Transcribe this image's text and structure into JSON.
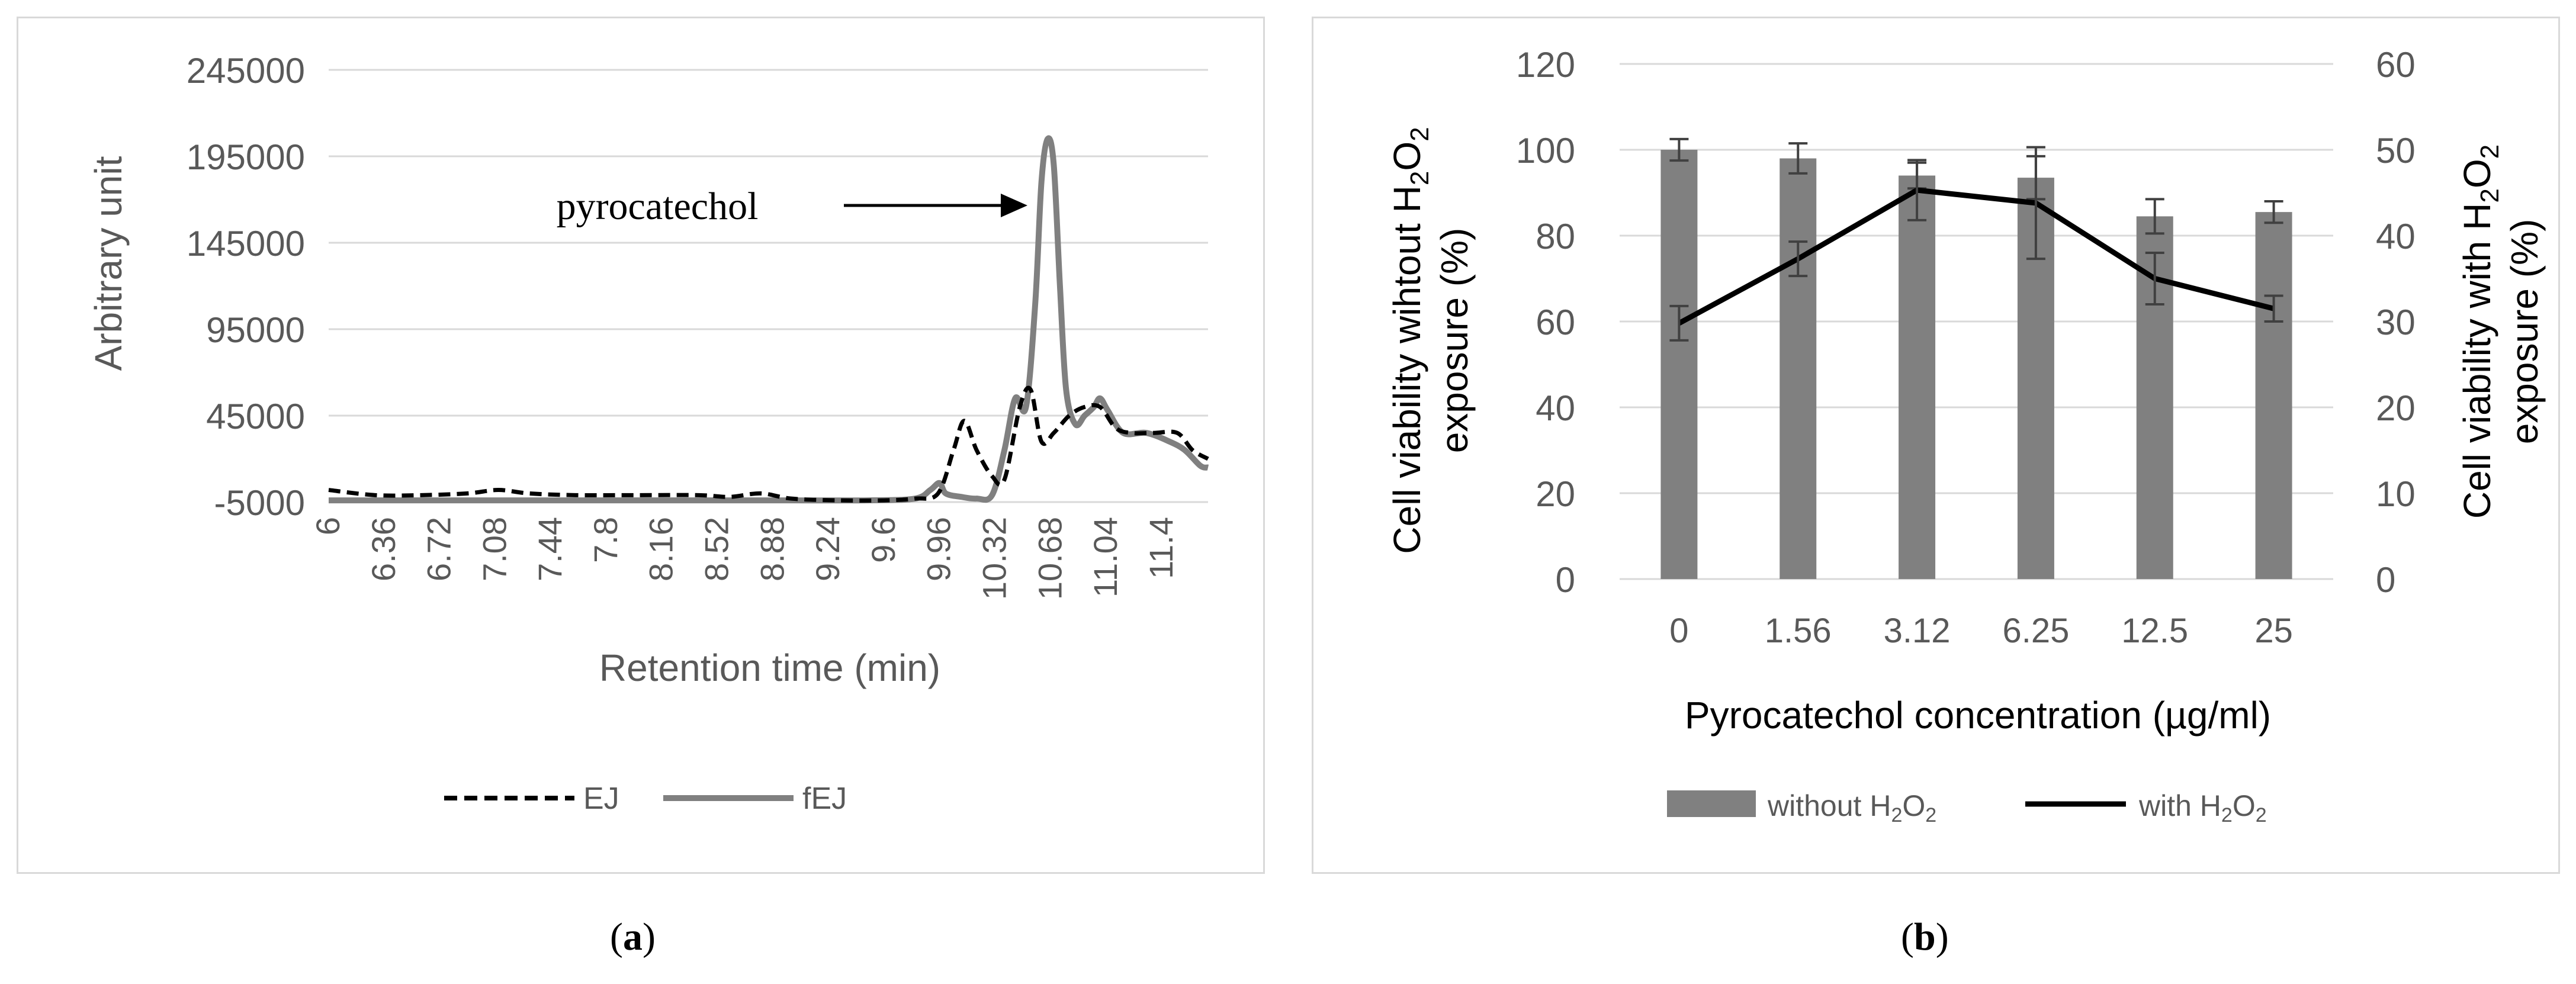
{
  "figure": {
    "caption_a": {
      "open": "(",
      "letter": "a",
      "close": ")"
    },
    "caption_b": {
      "open": "(",
      "letter": "b",
      "close": ")"
    }
  },
  "colors": {
    "bar": "#808080",
    "ej_line": "#000000",
    "fej_line": "#808080",
    "with_line": "#000000",
    "grid": "#d9d9d9",
    "axis_text": "#595959"
  },
  "chart_data": [
    {
      "id": "a",
      "type": "line",
      "title": "",
      "xlabel": "Retention time (min)",
      "ylabel": "Arbitrary unit",
      "ylim": [
        -5000,
        245000
      ],
      "y_ticks": [
        245000,
        195000,
        145000,
        95000,
        45000,
        -5000
      ],
      "y_tick_labels": [
        "245000",
        "195000",
        "145000",
        "95000",
        "45000",
        "-5000"
      ],
      "xlim": [
        6.0,
        11.7
      ],
      "x_ticks": [
        6,
        6.36,
        6.72,
        7.08,
        7.44,
        7.8,
        8.16,
        8.52,
        8.88,
        9.24,
        9.6,
        9.96,
        10.32,
        10.68,
        11.04,
        11.4
      ],
      "x_tick_labels": [
        "6",
        "6.36",
        "6.72",
        "7.08",
        "7.44",
        "7.8",
        "8.16",
        "8.52",
        "8.88",
        "9.24",
        "9.6",
        "9.96",
        "10.32",
        "10.68",
        "11.04",
        "11.4"
      ],
      "annotation": {
        "text": "pyrocatechol",
        "x": 10.68,
        "y": 200000
      },
      "legend": "bottom",
      "series": [
        {
          "name": "EJ",
          "style": "dashed",
          "x": [
            6.0,
            6.3,
            6.6,
            6.9,
            7.1,
            7.3,
            7.6,
            8.0,
            8.4,
            8.6,
            8.8,
            9.0,
            9.3,
            9.6,
            9.8,
            9.95,
            10.05,
            10.12,
            10.2,
            10.3,
            10.38,
            10.48,
            10.55,
            10.62,
            10.7,
            10.8,
            10.9,
            11.0,
            11.1,
            11.2,
            11.35,
            11.5,
            11.6,
            11.7
          ],
          "y": [
            2000,
            -1000,
            -1000,
            0,
            2000,
            0,
            -1000,
            -1000,
            -1000,
            -2000,
            0,
            -3000,
            -4000,
            -4000,
            -3000,
            0,
            25000,
            42000,
            25000,
            10000,
            8000,
            50000,
            60000,
            30000,
            35000,
            45000,
            50000,
            50000,
            38000,
            35000,
            35000,
            35000,
            25000,
            20000
          ]
        },
        {
          "name": "fEJ",
          "style": "solid",
          "x": [
            6.0,
            6.5,
            7.0,
            7.5,
            8.0,
            8.5,
            9.0,
            9.5,
            9.8,
            9.9,
            9.96,
            10.0,
            10.1,
            10.2,
            10.3,
            10.38,
            10.45,
            10.52,
            10.58,
            10.62,
            10.66,
            10.7,
            10.74,
            10.78,
            10.84,
            10.9,
            10.96,
            11.0,
            11.05,
            11.15,
            11.3,
            11.45,
            11.55,
            11.65,
            11.7
          ],
          "y": [
            -4000,
            -4000,
            -4000,
            -4000,
            -4000,
            -4000,
            -4000,
            -4000,
            -3000,
            2000,
            6000,
            0,
            -2000,
            -3000,
            -1000,
            25000,
            55000,
            50000,
            110000,
            180000,
            205000,
            190000,
            120000,
            60000,
            40000,
            45000,
            50000,
            55000,
            48000,
            35000,
            35000,
            30000,
            25000,
            16000,
            15000
          ]
        }
      ]
    },
    {
      "id": "b",
      "type": "bar+line",
      "title": "",
      "xlabel": "Pyrocatechol concentration (µg/ml)",
      "ylabel_left": {
        "pre": "Cell viability wihtout H",
        "sub": "2",
        "mid": "O",
        "sub2": "2",
        "line2": "exposure (%)"
      },
      "ylabel_right": {
        "pre": "Cell viability with H",
        "sub": "2",
        "mid": "O",
        "sub2": "2",
        "line2": "exposure (%)"
      },
      "ylim_left": [
        0,
        120
      ],
      "ylim_right": [
        0,
        60
      ],
      "y_ticks_left": [
        0,
        20,
        40,
        60,
        80,
        100,
        120
      ],
      "y_tick_labels_left": [
        "0",
        "20",
        "40",
        "60",
        "80",
        "100",
        "120"
      ],
      "y_ticks_right": [
        0,
        10,
        20,
        30,
        40,
        50,
        60
      ],
      "y_tick_labels_right": [
        "0",
        "10",
        "20",
        "30",
        "40",
        "50",
        "60"
      ],
      "categories": [
        "0",
        "1.56",
        "3.12",
        "6.25",
        "12.5",
        "25"
      ],
      "legend": "bottom",
      "series": [
        {
          "name": "without H2O2",
          "legend_label": {
            "pre": "without H",
            "sub": "2",
            "mid": "O",
            "sub2": "2"
          },
          "kind": "bar",
          "axis": "left",
          "values": [
            100,
            98,
            94,
            93.5,
            84.5,
            85.5
          ],
          "errors": [
            2.5,
            3.5,
            3,
            5,
            4,
            2.5
          ]
        },
        {
          "name": "with H2O2",
          "legend_label": {
            "pre": "with H",
            "sub": "2",
            "mid": "O",
            "sub2": "2"
          },
          "kind": "line",
          "axis": "right",
          "values": [
            29.8,
            37.3,
            45.3,
            43.8,
            35.0,
            31.5
          ],
          "errors": [
            2,
            2,
            3.5,
            6.5,
            3,
            1.5
          ]
        }
      ]
    }
  ]
}
